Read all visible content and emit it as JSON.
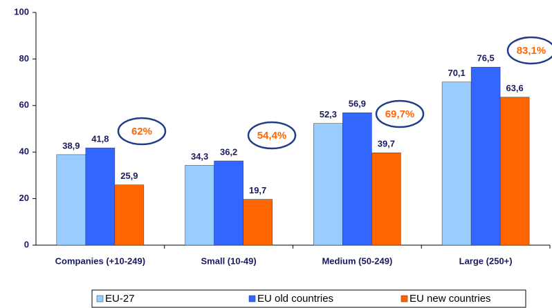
{
  "chart_data": {
    "type": "bar",
    "categories": [
      "Companies (+10-249)",
      "Small (10-49)",
      "Medium (50-249)",
      "Large (250+)"
    ],
    "series": [
      {
        "name": "EU-27",
        "color": "#99ccff",
        "values": [
          38.9,
          34.3,
          52.3,
          70.1
        ],
        "value_labels": [
          "38,9",
          "34,3",
          "52,3",
          "70,1"
        ]
      },
      {
        "name": "EU old countries",
        "color": "#3366ff",
        "values": [
          41.8,
          36.2,
          56.9,
          76.5
        ],
        "value_labels": [
          "41,8",
          "36,2",
          "56,9",
          "76,5"
        ]
      },
      {
        "name": "EU new countries",
        "color": "#ff6600",
        "values": [
          25.9,
          19.7,
          39.7,
          63.6
        ],
        "value_labels": [
          "25,9",
          "19,7",
          "39,7",
          "63,6"
        ]
      }
    ],
    "annotations": [
      "62%",
      "54,4%",
      "69,7%",
      "83,1%"
    ],
    "ylim": [
      0,
      100
    ],
    "yticks": [
      0,
      20,
      40,
      60,
      80,
      100
    ],
    "grid": false,
    "legend": "bottom"
  }
}
